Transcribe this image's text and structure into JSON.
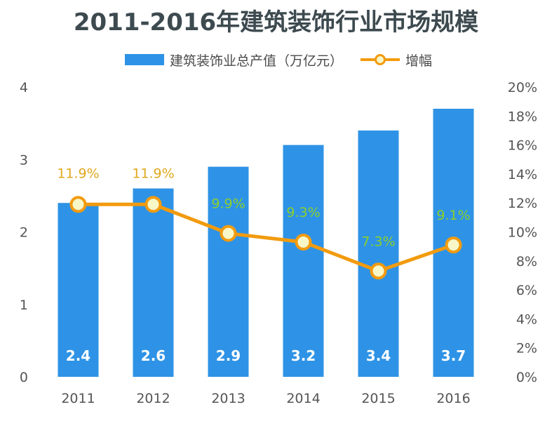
{
  "chart_data": {
    "type": "bar",
    "title": "2011-2016年建筑装饰行业市场规模",
    "categories": [
      "2011",
      "2012",
      "2013",
      "2014",
      "2015",
      "2016"
    ],
    "series": [
      {
        "name": "建筑装饰业总产值（万亿元）",
        "type": "bar",
        "axis": "left",
        "values": [
          2.4,
          2.6,
          2.9,
          3.2,
          3.4,
          3.7
        ],
        "labels": [
          "2.4",
          "2.6",
          "2.9",
          "3.2",
          "3.4",
          "3.7"
        ]
      },
      {
        "name": "增幅",
        "type": "line",
        "axis": "right",
        "values": [
          11.9,
          11.9,
          9.9,
          9.3,
          7.3,
          9.1
        ],
        "labels": [
          "11.9%",
          "11.9%",
          "9.9%",
          "9.3%",
          "7.3%",
          "9.1%"
        ]
      }
    ],
    "y_left": {
      "ylim": [
        0,
        4
      ],
      "ticks": [
        "0",
        "1",
        "2",
        "3",
        "4"
      ]
    },
    "y_right": {
      "ylim": [
        0,
        20
      ],
      "ticks": [
        "0%",
        "2%",
        "4%",
        "6%",
        "8%",
        "10%",
        "12%",
        "14%",
        "16%",
        "18%",
        "20%"
      ]
    },
    "legend_position": "top",
    "grid": false,
    "colors": {
      "bar": "#2e93e6",
      "line": "#f29b0f",
      "marker_fill": "#f7f7c8",
      "label_warm": "#e0a81e",
      "label_green": "#8ccf2a"
    }
  }
}
